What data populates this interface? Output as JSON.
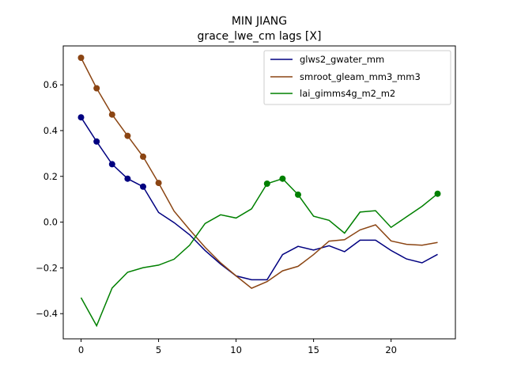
{
  "chart_data": {
    "type": "line",
    "title": "MIN JIANG",
    "subtitle": "grace_lwe_cm lags [X]",
    "xlabel": "",
    "ylabel": "",
    "xlim": [
      -1.15,
      24.15
    ],
    "ylim": [
      -0.51,
      0.77
    ],
    "xticks": [
      0,
      5,
      10,
      15,
      20
    ],
    "yticks": [
      -0.4,
      -0.2,
      0.0,
      0.2,
      0.4,
      0.6
    ],
    "ytick_labels": [
      "−0.4",
      "−0.2",
      "0.0",
      "0.2",
      "0.4",
      "0.6"
    ],
    "grid": false,
    "legend_position": "top-right",
    "x": [
      0,
      1,
      2,
      3,
      4,
      5,
      6,
      7,
      8,
      9,
      10,
      11,
      12,
      13,
      14,
      15,
      16,
      17,
      18,
      19,
      20,
      21,
      22,
      23
    ],
    "series": [
      {
        "name": "glws2_gwater_mm",
        "color": "#000080",
        "values": [
          0.458,
          0.352,
          0.253,
          0.19,
          0.155,
          0.042,
          -0.002,
          -0.055,
          -0.124,
          -0.183,
          -0.235,
          -0.252,
          -0.252,
          -0.142,
          -0.106,
          -0.122,
          -0.103,
          -0.129,
          -0.079,
          -0.079,
          -0.124,
          -0.161,
          -0.178,
          -0.141
        ],
        "markers": [
          0,
          1,
          2,
          3,
          4
        ]
      },
      {
        "name": "smroot_gleam_mm3_mm3",
        "color": "#8B4513",
        "values": [
          0.718,
          0.585,
          0.47,
          0.377,
          0.286,
          0.171,
          0.048,
          -0.033,
          -0.11,
          -0.178,
          -0.235,
          -0.289,
          -0.26,
          -0.213,
          -0.193,
          -0.142,
          -0.083,
          -0.077,
          -0.034,
          -0.012,
          -0.082,
          -0.097,
          -0.101,
          -0.089
        ],
        "markers": [
          0,
          1,
          2,
          3,
          4,
          5
        ]
      },
      {
        "name": "lai_gimms4g_m2_m2",
        "color": "#008000",
        "values": [
          -0.33,
          -0.453,
          -0.288,
          -0.219,
          -0.199,
          -0.188,
          -0.162,
          -0.101,
          -0.006,
          0.032,
          0.018,
          0.058,
          0.168,
          0.19,
          0.12,
          0.026,
          0.008,
          -0.048,
          0.044,
          0.05,
          -0.023,
          0.023,
          0.069,
          0.124
        ],
        "markers": [
          12,
          13,
          14,
          23
        ]
      }
    ]
  }
}
